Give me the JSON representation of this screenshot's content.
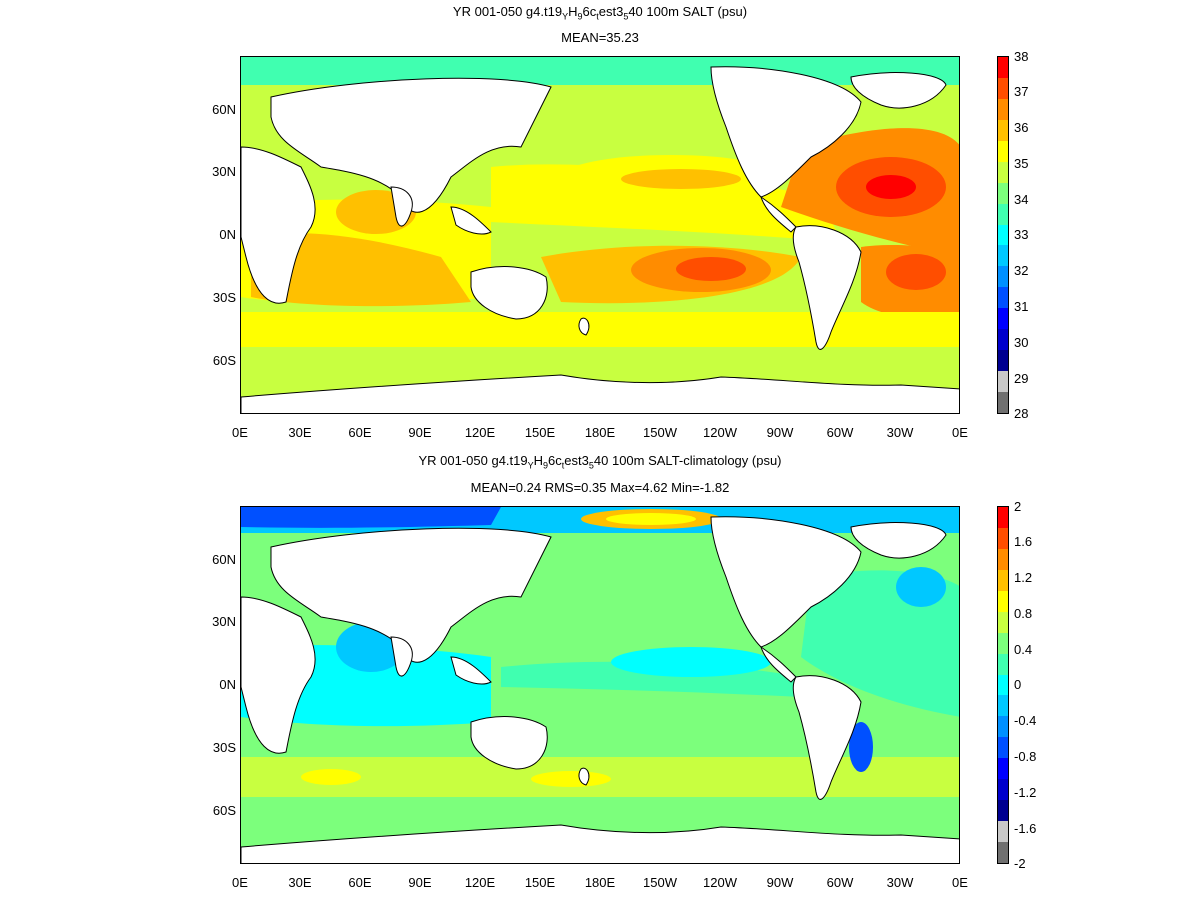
{
  "panels": [
    {
      "title_line1": {
        "pre": "YR 001-050 g4.t19",
        "s1": "Y",
        "m1": "H",
        "s2": "9",
        "m2": "6c",
        "s3": "t",
        "m3": "est3",
        "s4": "5",
        "post": "40 100m SALT (psu)"
      },
      "title_line2": "MEAN=35.23",
      "lat_labels": [
        "60N",
        "30N",
        "0N",
        "30S",
        "60S"
      ],
      "lon_labels": [
        "0E",
        "30E",
        "60E",
        "90E",
        "120E",
        "150E",
        "180E",
        "150W",
        "120W",
        "90W",
        "60W",
        "30W",
        "0E"
      ],
      "colorbar": {
        "labels": [
          "38",
          "37",
          "36",
          "35",
          "34",
          "33",
          "32",
          "31",
          "30",
          "29",
          "28"
        ],
        "colors": [
          "#ff0000",
          "#ff4e00",
          "#ff8c00",
          "#ffc000",
          "#ffff00",
          "#c8ff40",
          "#7cff7c",
          "#40ffb0",
          "#00ffff",
          "#00c8ff",
          "#0090ff",
          "#0050ff",
          "#0000ff",
          "#0000cc",
          "#000090",
          "#c8c8c8",
          "#707070"
        ]
      },
      "field_colors": {
        "base": "#c8ff40",
        "arctic": "#40ffb0",
        "fresh": "#7cff7c",
        "mid": "#ffff00",
        "salty": "#ffc000",
        "saltier": "#ff8c00",
        "hot": "#ff4e00",
        "max": "#ff0000"
      }
    },
    {
      "title_line1": {
        "pre": "YR 001-050 g4.t19",
        "s1": "Y",
        "m1": "H",
        "s2": "9",
        "m2": "6c",
        "s3": "t",
        "m3": "est3",
        "s4": "5",
        "post": "40 100m SALT-climatology (psu)"
      },
      "title_line2": "MEAN=0.24   RMS=0.35   Max=4.62   Min=-1.82",
      "lat_labels": [
        "60N",
        "30N",
        "0N",
        "30S",
        "60S"
      ],
      "lon_labels": [
        "0E",
        "30E",
        "60E",
        "90E",
        "120E",
        "150E",
        "180E",
        "150W",
        "120W",
        "90W",
        "60W",
        "30W",
        "0E"
      ],
      "colorbar": {
        "labels": [
          "2",
          "1.6",
          "1.2",
          "0.8",
          "0.4",
          "0",
          "-0.4",
          "-0.8",
          "-1.2",
          "-1.6",
          "-2"
        ],
        "colors": [
          "#ff0000",
          "#ff4e00",
          "#ff8c00",
          "#ffc000",
          "#ffff00",
          "#c8ff40",
          "#7cff7c",
          "#40ffb0",
          "#00ffff",
          "#00c8ff",
          "#0090ff",
          "#0050ff",
          "#0000ff",
          "#0000cc",
          "#000090",
          "#c8c8c8",
          "#707070"
        ]
      },
      "field_colors": {
        "base": "#7cff7c",
        "arctic": "#00c8ff",
        "fresh": "#00ffff",
        "mid": "#40ffb0",
        "salty": "#c8ff40",
        "saltier": "#ffff00",
        "hot": "#ffc000",
        "max": "#0050ff"
      }
    }
  ]
}
